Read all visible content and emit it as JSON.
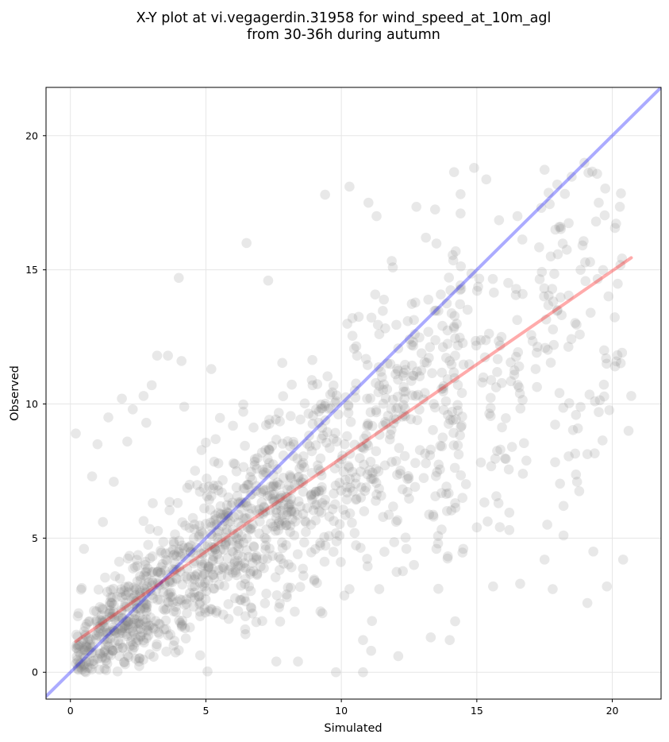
{
  "chart_data": {
    "type": "scatter",
    "title_line1": "X-Y plot at vi.vegagerdin.31958 for wind_speed_at_10m_agl",
    "title_line2": "from 30-36h during autumn",
    "xlabel": "Simulated",
    "ylabel": "Observed",
    "xlim": [
      -0.9,
      21.8
    ],
    "ylim": [
      -1.0,
      21.8
    ],
    "xticks": [
      0,
      5,
      10,
      15,
      20
    ],
    "yticks": [
      0,
      5,
      10,
      15,
      20
    ],
    "grid": true,
    "point_color": "#808080",
    "identity_line": {
      "color": "#0000ff",
      "from": [
        -0.9,
        -0.9
      ],
      "to": [
        21.8,
        21.8
      ]
    },
    "regression_line": {
      "color": "#ff0000",
      "from": [
        0.2,
        1.15
      ],
      "to": [
        20.7,
        15.45
      ]
    },
    "sampled_points": [
      [
        0.2,
        8.9
      ],
      [
        0.8,
        7.3
      ],
      [
        0.3,
        2.2
      ],
      [
        0.5,
        4.6
      ],
      [
        1.0,
        8.5
      ],
      [
        1.2,
        5.6
      ],
      [
        1.4,
        9.5
      ],
      [
        1.6,
        7.1
      ],
      [
        1.9,
        10.2
      ],
      [
        2.1,
        8.6
      ],
      [
        2.3,
        9.8
      ],
      [
        2.7,
        10.3
      ],
      [
        2.8,
        9.3
      ],
      [
        3.0,
        10.7
      ],
      [
        3.2,
        11.8
      ],
      [
        3.6,
        11.8
      ],
      [
        4.0,
        14.7
      ],
      [
        4.1,
        11.6
      ],
      [
        4.2,
        9.9
      ],
      [
        5.2,
        11.3
      ],
      [
        6.5,
        16.0
      ],
      [
        7.3,
        14.6
      ],
      [
        9.4,
        17.8
      ],
      [
        10.3,
        18.1
      ],
      [
        11.0,
        17.5
      ],
      [
        11.3,
        17.0
      ],
      [
        14.4,
        17.1
      ],
      [
        14.9,
        18.8
      ],
      [
        16.5,
        17.0
      ],
      [
        17.9,
        16.5
      ],
      [
        19.5,
        17.5
      ],
      [
        19.4,
        16.8
      ],
      [
        19.2,
        13.4
      ],
      [
        19.7,
        12.0
      ],
      [
        20.1,
        11.4
      ],
      [
        20.7,
        10.3
      ],
      [
        20.6,
        9.0
      ],
      [
        18.7,
        7.1
      ],
      [
        18.2,
        5.1
      ],
      [
        19.3,
        4.5
      ],
      [
        19.8,
        3.2
      ],
      [
        20.4,
        4.2
      ],
      [
        17.8,
        3.1
      ],
      [
        17.5,
        4.2
      ],
      [
        16.6,
        3.3
      ],
      [
        15.6,
        3.2
      ],
      [
        15.0,
        5.4
      ],
      [
        16.2,
        5.3
      ],
      [
        17.6,
        5.5
      ],
      [
        12.1,
        0.6
      ],
      [
        13.3,
        1.3
      ],
      [
        14.0,
        1.2
      ],
      [
        14.2,
        1.9
      ],
      [
        10.8,
        1.2
      ],
      [
        11.1,
        0.8
      ],
      [
        9.8,
        0.0
      ],
      [
        10.8,
        0.0
      ],
      [
        8.4,
        0.4
      ],
      [
        7.6,
        0.4
      ],
      [
        13.3,
        8.3
      ],
      [
        12.8,
        9.4
      ],
      [
        15.2,
        10.8
      ],
      [
        16.7,
        7.4
      ],
      [
        15.8,
        6.3
      ],
      [
        14.2,
        6.3
      ],
      [
        13.4,
        5.8
      ],
      [
        14.5,
        4.6
      ],
      [
        12.4,
        4.6
      ],
      [
        11.4,
        3.1
      ],
      [
        10.3,
        3.1
      ],
      [
        9.3,
        2.2
      ],
      [
        8.6,
        3.6
      ]
    ]
  }
}
